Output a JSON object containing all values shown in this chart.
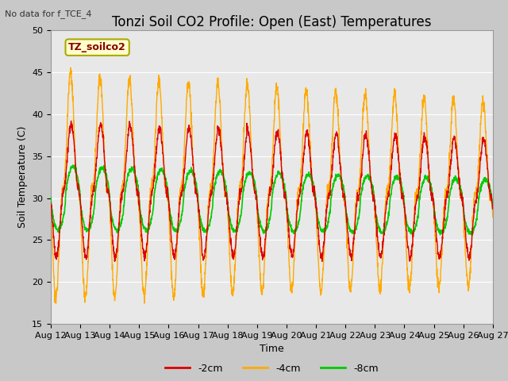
{
  "title": "Tonzi Soil CO2 Profile: Open (East) Temperatures",
  "no_data_text": "No data for f_TCE_4",
  "ylabel": "Soil Temperature (C)",
  "xlabel": "Time",
  "legend_label": "TZ_soilco2",
  "ylim": [
    15,
    50
  ],
  "yticks": [
    15,
    20,
    25,
    30,
    35,
    40,
    45,
    50
  ],
  "n_days": 15,
  "xtick_labels": [
    "Aug 12",
    "Aug 13",
    "Aug 14",
    "Aug 15",
    "Aug 16",
    "Aug 17",
    "Aug 18",
    "Aug 19",
    "Aug 20",
    "Aug 21",
    "Aug 22",
    "Aug 23",
    "Aug 24",
    "Aug 25",
    "Aug 26",
    "Aug 27"
  ],
  "series": {
    "neg2cm": {
      "label": "-2cm",
      "color": "#dd0000",
      "lw": 1.0
    },
    "neg4cm": {
      "label": "-4cm",
      "color": "#ffaa00",
      "lw": 1.0
    },
    "neg8cm": {
      "label": "-8cm",
      "color": "#00cc00",
      "lw": 1.2
    }
  },
  "fig_facecolor": "#c8c8c8",
  "ax_facecolor": "#e8e8e8",
  "grid_color": "#ffffff",
  "title_fontsize": 12,
  "axis_fontsize": 9,
  "tick_fontsize": 8,
  "no_data_fontsize": 8,
  "legend_fontsize": 9
}
